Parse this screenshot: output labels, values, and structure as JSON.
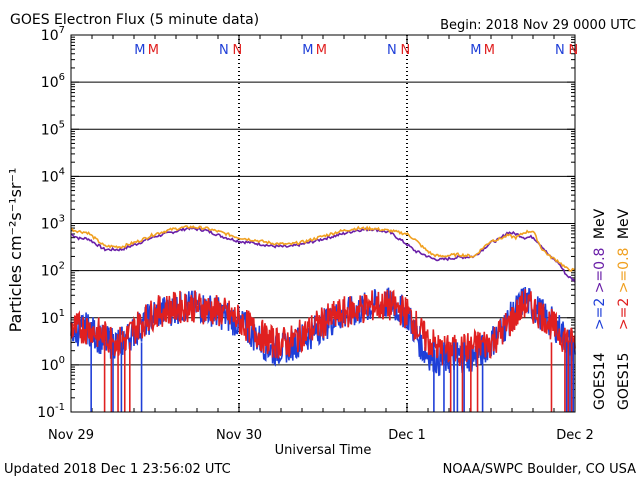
{
  "chart_data": {
    "type": "line",
    "title": "GOES Electron Flux (5 minute data)",
    "begin_label": "Begin: 2018 Nov 29 0000 UTC",
    "xlabel": "Universal Time",
    "ylabel": "Particles cm⁻²s⁻¹sr⁻¹",
    "y_scale": "log",
    "ylim": [
      0.1,
      10000000
    ],
    "y_ticks": [
      {
        "base": "10",
        "exp": "7"
      },
      {
        "base": "10",
        "exp": "6"
      },
      {
        "base": "10",
        "exp": "5"
      },
      {
        "base": "10",
        "exp": "4"
      },
      {
        "base": "10",
        "exp": "3"
      },
      {
        "base": "10",
        "exp": "2"
      },
      {
        "base": "10",
        "exp": "1"
      },
      {
        "base": "10",
        "exp": "0"
      },
      {
        "base": "10",
        "exp": "-1"
      }
    ],
    "x_ticks": [
      "Nov 29",
      "Nov 30",
      "Dec 1",
      "Dec 2"
    ],
    "x_units": "days from 2018 Nov 29 0000 UTC",
    "xlim": [
      0,
      3
    ],
    "threshold_flux": 1000,
    "markers": [
      {
        "label": "M",
        "color": "#1f3fd8",
        "x": 0.41
      },
      {
        "label": "M",
        "color": "#e02020",
        "x": 0.49
      },
      {
        "label": "N",
        "color": "#1f3fd8",
        "x": 0.91
      },
      {
        "label": "N",
        "color": "#e02020",
        "x": 0.99
      },
      {
        "label": "M",
        "color": "#1f3fd8",
        "x": 1.41
      },
      {
        "label": "M",
        "color": "#e02020",
        "x": 1.49
      },
      {
        "label": "N",
        "color": "#1f3fd8",
        "x": 1.91
      },
      {
        "label": "N",
        "color": "#e02020",
        "x": 1.99
      },
      {
        "label": "M",
        "color": "#1f3fd8",
        "x": 2.41
      },
      {
        "label": "M",
        "color": "#e02020",
        "x": 2.49
      },
      {
        "label": "N",
        "color": "#1f3fd8",
        "x": 2.91
      },
      {
        "label": "N",
        "color": "#e02020",
        "x": 2.99
      }
    ],
    "legend": [
      {
        "label": "GOES14",
        "color": "#000000"
      },
      {
        "label": ">=2",
        "color": "#1f3fd8"
      },
      {
        "label": ">=0.8",
        "color": "#6a1fa8"
      },
      {
        "label": "MeV",
        "color": "#000000"
      },
      {
        "label": "GOES15",
        "color": "#000000"
      },
      {
        "label": ">=2",
        "color": "#e02020"
      },
      {
        "label": ">=0.8",
        "color": "#f0a020"
      },
      {
        "label": "MeV",
        "color": "#000000"
      }
    ],
    "series": [
      {
        "color": "#6a1fa8",
        "noise": 0.03,
        "x": [
          0,
          0.05,
          0.1,
          0.2,
          0.3,
          0.4,
          0.5,
          0.6,
          0.7,
          0.8,
          0.9,
          1.0,
          1.1,
          1.2,
          1.3,
          1.4,
          1.5,
          1.6,
          1.7,
          1.8,
          1.9,
          2.0,
          2.05,
          2.1,
          2.15,
          2.2,
          2.3,
          2.4,
          2.45,
          2.5,
          2.55,
          2.6,
          2.65,
          2.7,
          2.75,
          2.8,
          2.85,
          2.9,
          2.95,
          3.0
        ],
        "y": [
          600,
          480,
          480,
          280,
          280,
          380,
          530,
          650,
          800,
          720,
          530,
          420,
          380,
          330,
          320,
          380,
          470,
          580,
          720,
          760,
          640,
          360,
          260,
          220,
          180,
          170,
          190,
          200,
          280,
          400,
          460,
          650,
          600,
          500,
          520,
          340,
          200,
          150,
          80,
          60
        ]
      },
      {
        "color": "#f0a020",
        "noise": 0.03,
        "x": [
          0,
          0.05,
          0.1,
          0.2,
          0.3,
          0.4,
          0.5,
          0.6,
          0.7,
          0.8,
          0.9,
          1.0,
          1.1,
          1.2,
          1.3,
          1.4,
          1.5,
          1.6,
          1.7,
          1.8,
          1.9,
          2.0,
          2.05,
          2.1,
          2.15,
          2.2,
          2.3,
          2.4,
          2.45,
          2.5,
          2.55,
          2.6,
          2.65,
          2.7,
          2.75,
          2.8,
          2.85,
          2.9,
          2.95,
          3.0
        ],
        "y": [
          750,
          680,
          640,
          330,
          320,
          420,
          600,
          750,
          850,
          800,
          640,
          500,
          440,
          380,
          360,
          420,
          540,
          680,
          790,
          780,
          700,
          600,
          450,
          300,
          220,
          200,
          220,
          200,
          300,
          430,
          470,
          560,
          500,
          650,
          700,
          300,
          200,
          160,
          110,
          100
        ]
      },
      {
        "color": "#1f3fd8",
        "noise": 0.35,
        "x": [
          0,
          0.1,
          0.2,
          0.3,
          0.4,
          0.5,
          0.6,
          0.7,
          0.8,
          0.9,
          1.0,
          1.1,
          1.2,
          1.3,
          1.4,
          1.5,
          1.6,
          1.7,
          1.8,
          1.9,
          2.0,
          2.1,
          2.2,
          2.3,
          2.4,
          2.5,
          2.6,
          2.7,
          2.8,
          2.9,
          3.0
        ],
        "y": [
          5,
          6,
          3,
          3,
          6,
          12,
          15,
          18,
          16,
          12,
          8,
          4,
          2,
          2.5,
          4,
          7,
          11,
          14,
          18,
          20,
          12,
          2,
          1.2,
          1.5,
          1.5,
          3,
          8,
          25,
          12,
          6,
          2
        ]
      },
      {
        "color": "#e02020",
        "noise": 0.35,
        "x": [
          0,
          0.1,
          0.2,
          0.3,
          0.4,
          0.5,
          0.6,
          0.7,
          0.8,
          0.9,
          1.0,
          1.1,
          1.2,
          1.3,
          1.4,
          1.5,
          1.6,
          1.7,
          1.8,
          1.9,
          2.0,
          2.1,
          2.2,
          2.3,
          2.4,
          2.5,
          2.6,
          2.7,
          2.8,
          2.9,
          3.0
        ],
        "y": [
          6,
          6,
          4,
          3,
          7,
          13,
          16,
          18,
          16,
          13,
          9,
          5,
          3,
          3,
          5,
          8,
          12,
          15,
          18,
          18,
          13,
          4,
          2,
          2,
          2.5,
          3,
          7,
          20,
          12,
          5,
          2.5
        ]
      }
    ],
    "dropouts": [
      {
        "color": "#1f3fd8",
        "x": [
          0.12,
          0.25,
          0.3,
          0.42,
          2.16,
          2.22,
          2.28,
          2.3,
          2.34,
          2.45,
          2.95,
          2.97,
          2.99
        ]
      },
      {
        "color": "#e02020",
        "x": [
          0.2,
          0.24,
          0.28,
          0.32,
          0.35,
          2.26,
          2.33,
          2.38,
          2.42,
          2.86,
          2.94,
          2.96,
          2.98
        ]
      }
    ]
  },
  "footer": {
    "updated": "Updated 2018 Dec  1 23:56:02 UTC",
    "credit": "NOAA/SWPC Boulder, CO USA"
  }
}
